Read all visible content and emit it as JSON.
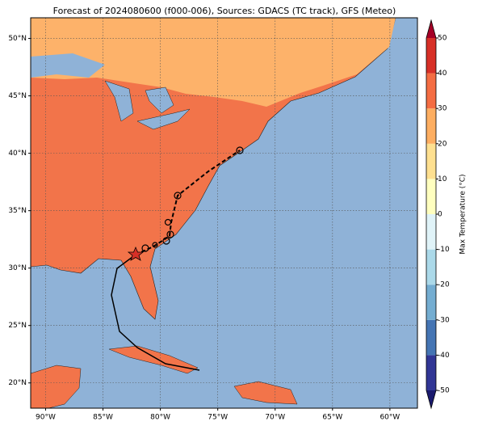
{
  "title": "Forecast of 2024080600 (f000-006), Sources: GDACS (TC track), GFS (Meteo)",
  "map": {
    "lon_range": [
      -91.3,
      -57.6
    ],
    "lat_range": [
      17.8,
      51.8
    ],
    "lon_ticks": [
      {
        "value": -90,
        "label": "90°W"
      },
      {
        "value": -85,
        "label": "85°W"
      },
      {
        "value": -80,
        "label": "80°W"
      },
      {
        "value": -75,
        "label": "75°W"
      },
      {
        "value": -70,
        "label": "70°W"
      },
      {
        "value": -65,
        "label": "65°W"
      },
      {
        "value": -60,
        "label": "60°W"
      }
    ],
    "lat_ticks": [
      {
        "value": 20,
        "label": "20°N"
      },
      {
        "value": 25,
        "label": "25°N"
      },
      {
        "value": 30,
        "label": "30°N"
      },
      {
        "value": 35,
        "label": "35°N"
      },
      {
        "value": 40,
        "label": "40°N"
      },
      {
        "value": 45,
        "label": "45°N"
      },
      {
        "value": 50,
        "label": "50°N"
      }
    ]
  },
  "colorbar": {
    "label": "Max Temperature (°C)",
    "range": [
      -50,
      50
    ],
    "ticks": [
      -50,
      -40,
      -30,
      -20,
      -10,
      0,
      10,
      20,
      30,
      40,
      50
    ],
    "colors": [
      "#313695",
      "#4575b4",
      "#74add1",
      "#abd9e9",
      "#e0f3f8",
      "#ffffbf",
      "#fee090",
      "#fdae61",
      "#f46d43",
      "#d73027"
    ],
    "under_color": "#1a1a6e",
    "over_color": "#a50026"
  }
}
